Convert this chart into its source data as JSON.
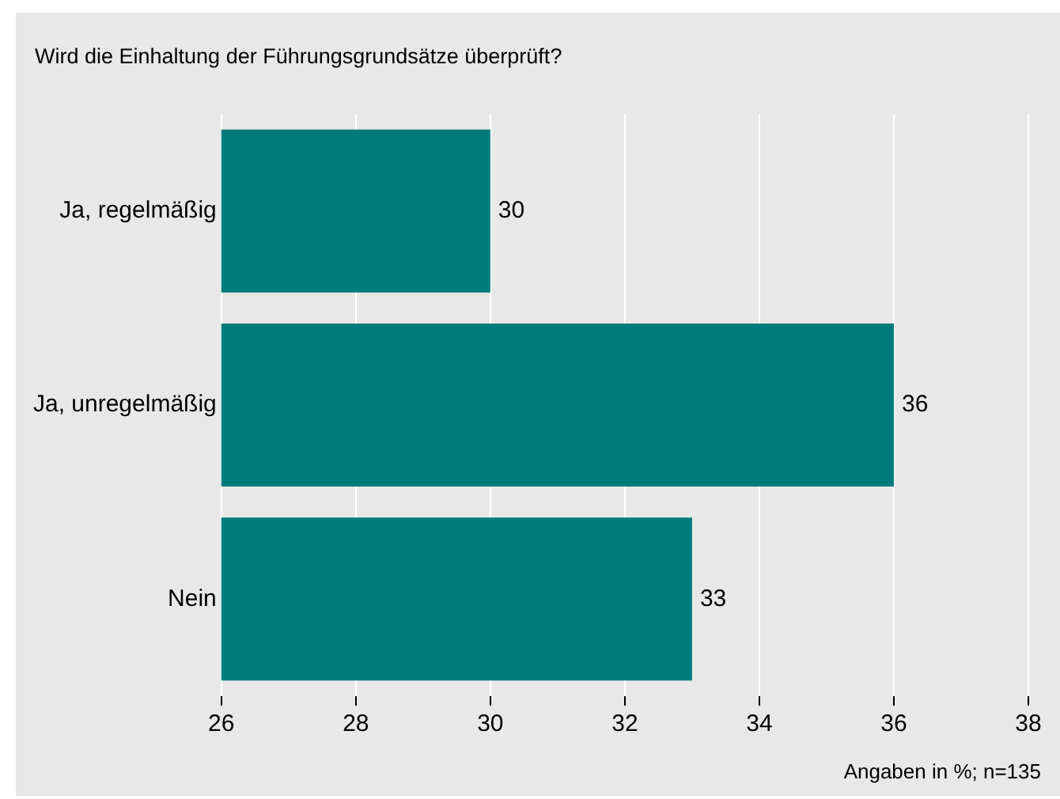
{
  "chart_data": {
    "type": "bar",
    "orientation": "horizontal",
    "title": "Wird die Einhaltung der Führungsgrundsätze überprüft?",
    "categories": [
      "Ja, regelmäßig",
      "Ja, unregelmäßig",
      "Nein"
    ],
    "values": [
      30,
      36,
      33
    ],
    "color": "#007b7b",
    "xlim": [
      26,
      38
    ],
    "xticks": [
      26,
      28,
      30,
      32,
      34,
      36,
      38
    ],
    "grid": "x",
    "data_labels": true,
    "legend": false,
    "annotations": [
      "Angaben in %; n=135"
    ]
  }
}
